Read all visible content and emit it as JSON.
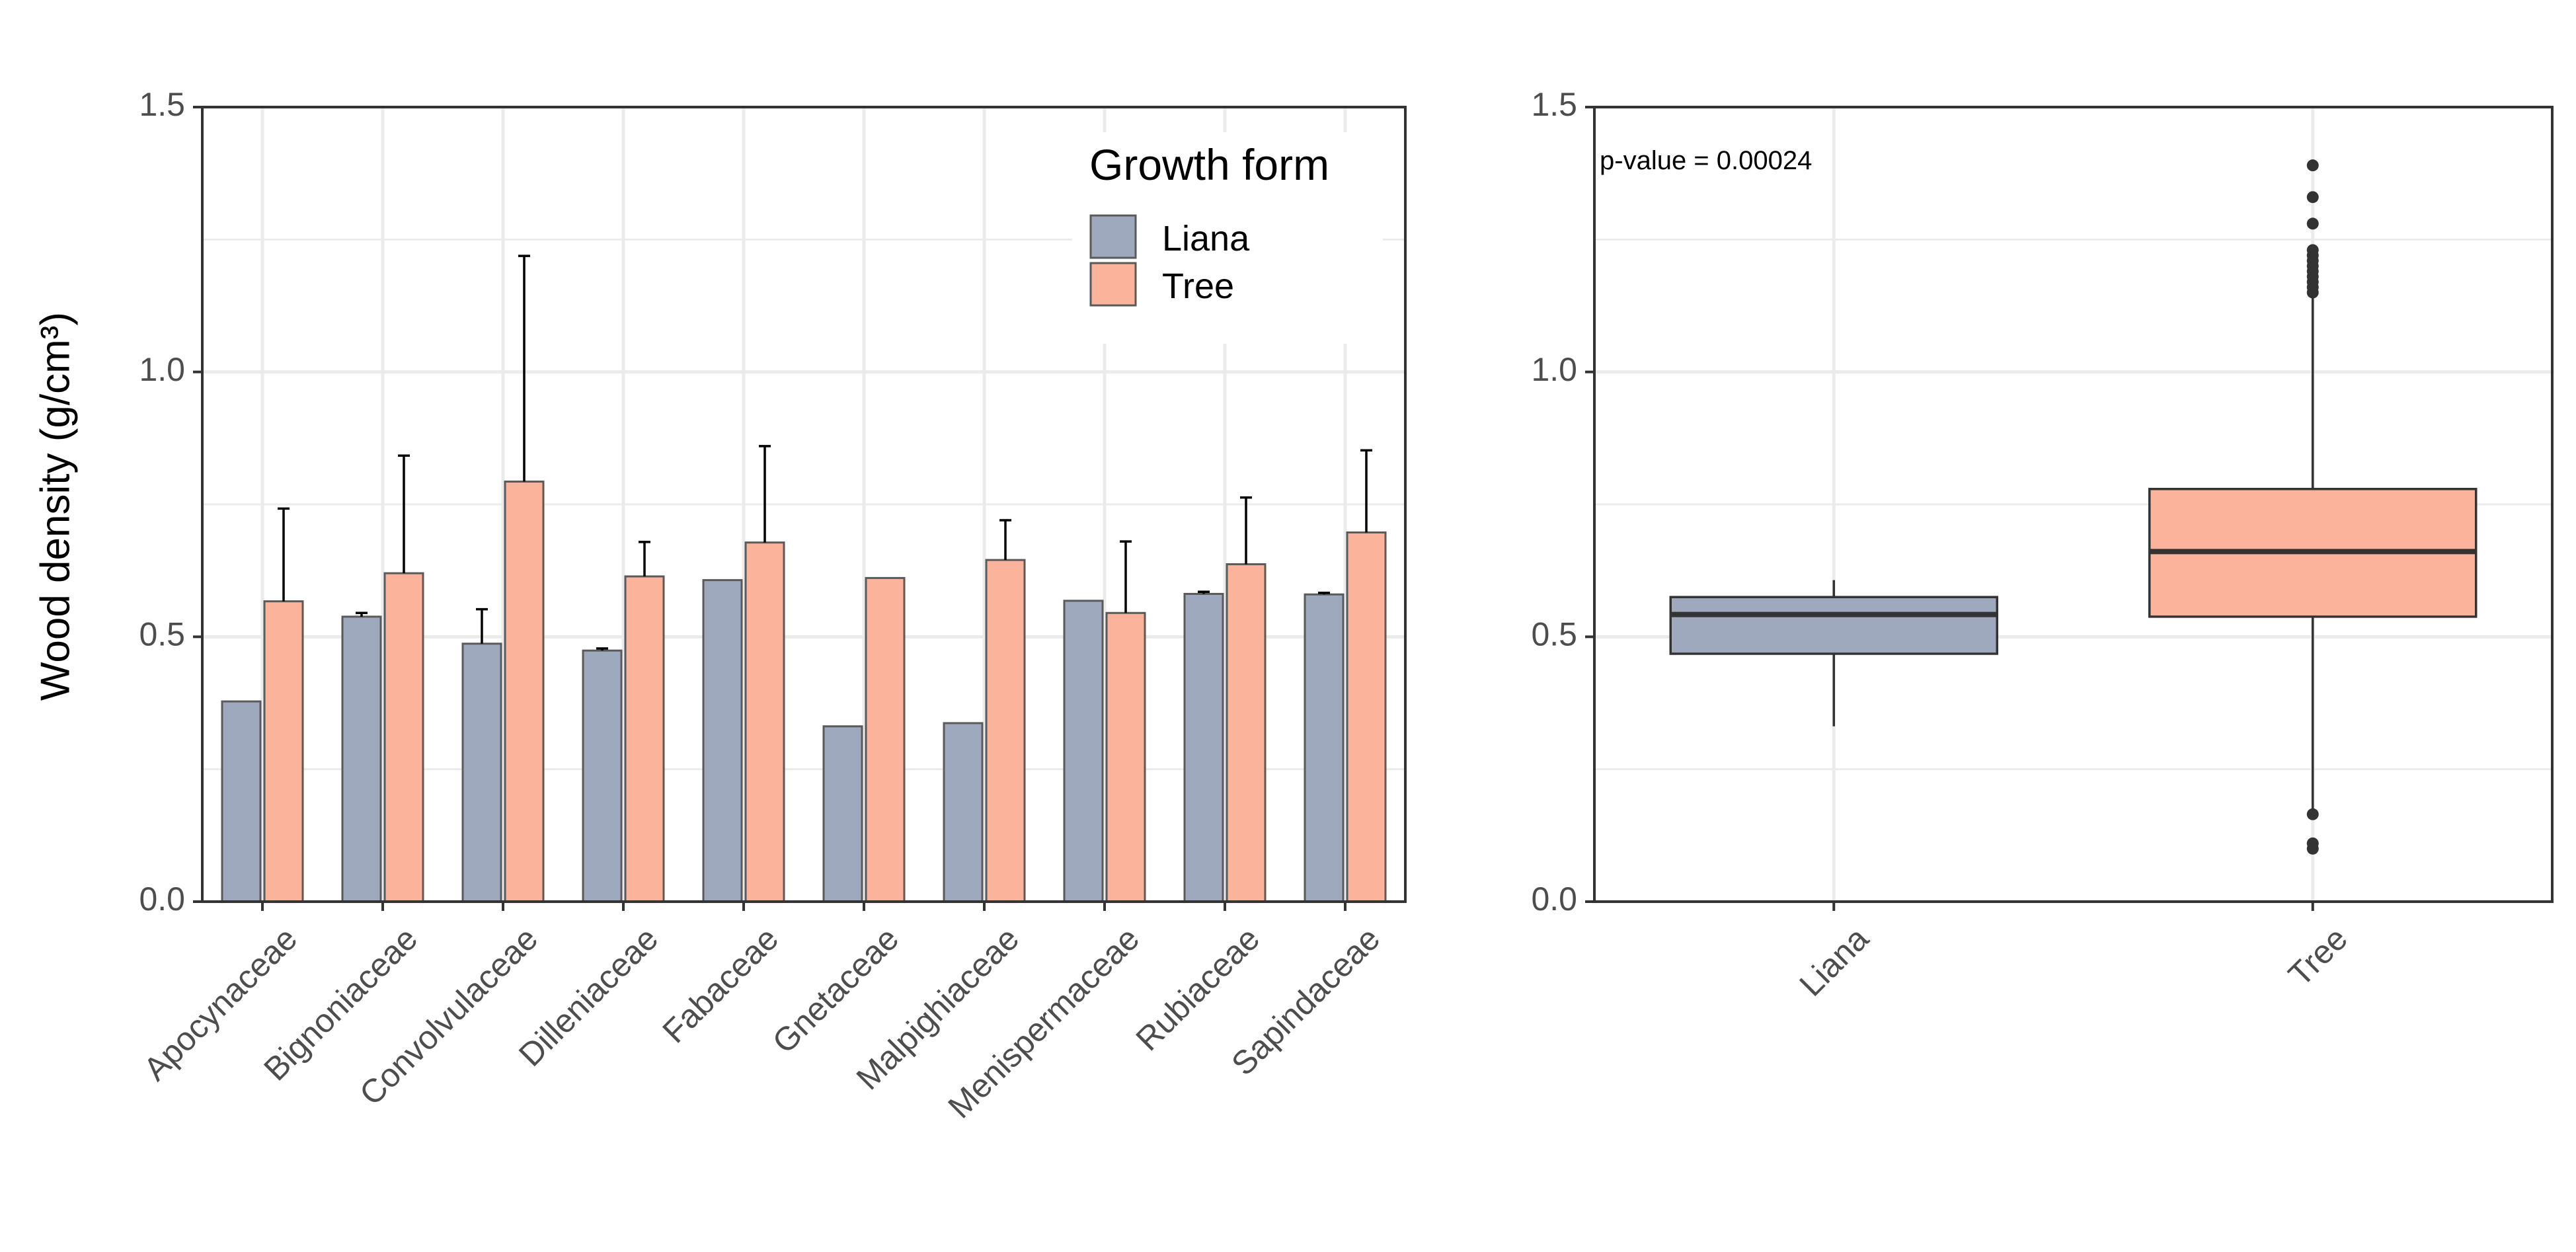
{
  "colors": {
    "liana": "#9FA9BE",
    "tree": "#FBB39B",
    "bar_outline": "#5a5a5a",
    "grid": "#EBEBEB",
    "axis": "#333333"
  },
  "chart_data": [
    {
      "type": "bar",
      "categories": [
        "Apocynaceae",
        "Bignoniaceae",
        "Convolvulaceae",
        "Dilleniaceae",
        "Fabaceae",
        "Gnetaceae",
        "Malpighiaceae",
        "Menispermaceae",
        "Rubiaceae",
        "Sapindaceae"
      ],
      "series": [
        {
          "name": "Liana",
          "values": [
            0.378,
            0.538,
            0.487,
            0.474,
            0.607,
            0.331,
            0.337,
            0.568,
            0.581,
            0.58
          ],
          "error_upper": [
            null,
            0.545,
            0.552,
            0.478,
            null,
            null,
            null,
            null,
            0.585,
            0.583
          ]
        },
        {
          "name": "Tree",
          "values": [
            0.567,
            0.62,
            0.793,
            0.614,
            0.678,
            0.611,
            0.645,
            0.545,
            0.637,
            0.697
          ],
          "error_upper": [
            0.742,
            0.842,
            1.219,
            0.679,
            0.86,
            null,
            0.72,
            0.68,
            0.763,
            0.852
          ]
        }
      ],
      "xlabel": "",
      "ylabel": "Wood density (g/cm³)",
      "ylim": [
        0,
        1.5
      ],
      "yticks": [
        "0.0",
        "0.5",
        "1.0",
        "1.5"
      ],
      "legend": {
        "title": "Growth form",
        "position": "top-right",
        "entries": [
          "Liana",
          "Tree"
        ]
      },
      "grid": true
    },
    {
      "type": "boxplot",
      "categories": [
        "Liana",
        "Tree"
      ],
      "boxes": [
        {
          "name": "Liana",
          "q1": 0.468,
          "median": 0.542,
          "q3": 0.575,
          "whisker_low": 0.331,
          "whisker_high": 0.607,
          "outliers": []
        },
        {
          "name": "Tree",
          "q1": 0.538,
          "median": 0.661,
          "q3": 0.779,
          "whisker_low": 0.17,
          "whisker_high": 1.14,
          "outliers": [
            1.39,
            1.33,
            1.28,
            1.23,
            1.22,
            1.21,
            1.2,
            1.19,
            1.18,
            1.17,
            1.16,
            1.15,
            0.165,
            0.11,
            0.1
          ]
        }
      ],
      "annotation": "p-value = 0.00024",
      "ylim": [
        0,
        1.5
      ],
      "yticks": [
        "0.0",
        "0.5",
        "1.0",
        "1.5"
      ],
      "grid": true
    }
  ]
}
